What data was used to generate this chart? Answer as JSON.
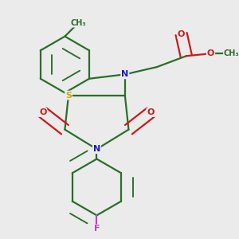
{
  "bg_color": "#ebebeb",
  "bond_color": "#2a6e2a",
  "atom_colors": {
    "N": "#1a1acc",
    "O": "#cc1a1a",
    "S": "#ccaa00",
    "F": "#bb44bb",
    "C": "#2a6e2a"
  },
  "bond_width": 1.6,
  "dbo": 0.018
}
